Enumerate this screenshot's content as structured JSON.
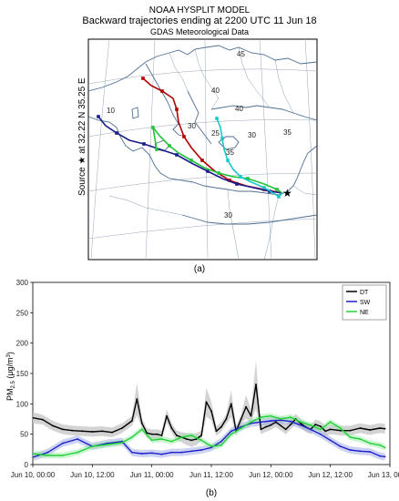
{
  "panel_a": {
    "title_line1": "NOAA HYSPLIT MODEL",
    "title_line2": "Backward trajectories ending at 2200 UTC 11 Jun 18",
    "title_line3": "GDAS Meteorological Data",
    "source_label": "Source ★ at  32.22 N  35.25 E",
    "panel_label": "(a)",
    "grid_labels": [
      "45",
      "40",
      "40",
      "35",
      "35",
      "30",
      "30",
      "30",
      "10",
      "25"
    ],
    "trajectory_colors": {
      "red": "#b00000",
      "blue": "#1b1b8c",
      "green": "#22c23a",
      "cyan": "#18c8c8"
    }
  },
  "panel_b": {
    "panel_label": "(b)",
    "ylabel_main": "PM",
    "ylabel_sub": "2.5",
    "ylabel_unit": " (μg/m",
    "ylabel_unit_sup": "3",
    "ylabel_end": ")"
  },
  "chart_data": {
    "type": "line",
    "xlabels": [
      "Jun 10, 00:00",
      "Jun 10, 12:00",
      "Jun 11, 00:00",
      "Jun 11, 12:00",
      "Jun 12, 00:00",
      "Jun 12, 12:00",
      "Jun 13, 00:00"
    ],
    "xlim_hours": [
      0,
      72
    ],
    "ylim": [
      0,
      300
    ],
    "yticks": [
      0,
      50,
      100,
      150,
      200,
      250,
      300
    ],
    "legend_position": "top-right",
    "series": [
      {
        "name": "DT",
        "color": "#000000",
        "x": [
          0,
          2,
          4,
          6,
          8,
          10,
          12,
          14,
          16,
          18,
          20,
          21,
          22,
          23,
          24,
          25,
          26,
          27,
          28,
          29,
          30,
          31,
          32,
          33,
          34,
          35,
          36,
          37,
          38,
          39,
          40,
          41,
          42,
          43,
          44,
          45,
          46,
          47,
          48,
          49,
          50,
          51,
          52,
          53,
          54,
          55,
          56,
          57,
          58,
          59,
          60,
          62,
          64,
          66,
          68,
          70,
          71
        ],
        "y": [
          77,
          74,
          64,
          58,
          56,
          55,
          54,
          55,
          53,
          60,
          72,
          108,
          68,
          52,
          50,
          50,
          48,
          80,
          60,
          48,
          45,
          42,
          40,
          42,
          48,
          103,
          88,
          55,
          62,
          75,
          100,
          55,
          75,
          95,
          80,
          132,
          58,
          62,
          65,
          70,
          64,
          58,
          66,
          75,
          68,
          62,
          58,
          66,
          63,
          55,
          58,
          56,
          56,
          60,
          57,
          60,
          59
        ]
      },
      {
        "name": "SW",
        "color": "#2020c8",
        "x": [
          0,
          3,
          6,
          9,
          12,
          15,
          18,
          20,
          22,
          24,
          26,
          28,
          30,
          32,
          34,
          36,
          38,
          40,
          42,
          44,
          46,
          48,
          50,
          52,
          54,
          56,
          58,
          60,
          62,
          64,
          66,
          68,
          70,
          71
        ],
        "y": [
          12,
          20,
          35,
          42,
          30,
          35,
          38,
          20,
          18,
          19,
          17,
          20,
          20,
          22,
          24,
          28,
          38,
          55,
          62,
          68,
          70,
          72,
          73,
          71,
          65,
          58,
          50,
          40,
          30,
          24,
          22,
          21,
          14,
          13
        ]
      },
      {
        "name": "NE",
        "color": "#22d036",
        "x": [
          0,
          3,
          6,
          9,
          12,
          15,
          18,
          20,
          22,
          24,
          26,
          28,
          30,
          32,
          34,
          36,
          38,
          40,
          42,
          44,
          46,
          48,
          50,
          52,
          54,
          56,
          58,
          60,
          62,
          64,
          66,
          68,
          70,
          71
        ],
        "y": [
          18,
          15,
          15,
          20,
          30,
          33,
          36,
          45,
          58,
          40,
          42,
          38,
          45,
          48,
          40,
          30,
          32,
          50,
          60,
          70,
          78,
          80,
          75,
          78,
          70,
          65,
          58,
          70,
          60,
          45,
          42,
          35,
          32,
          28
        ]
      }
    ]
  }
}
